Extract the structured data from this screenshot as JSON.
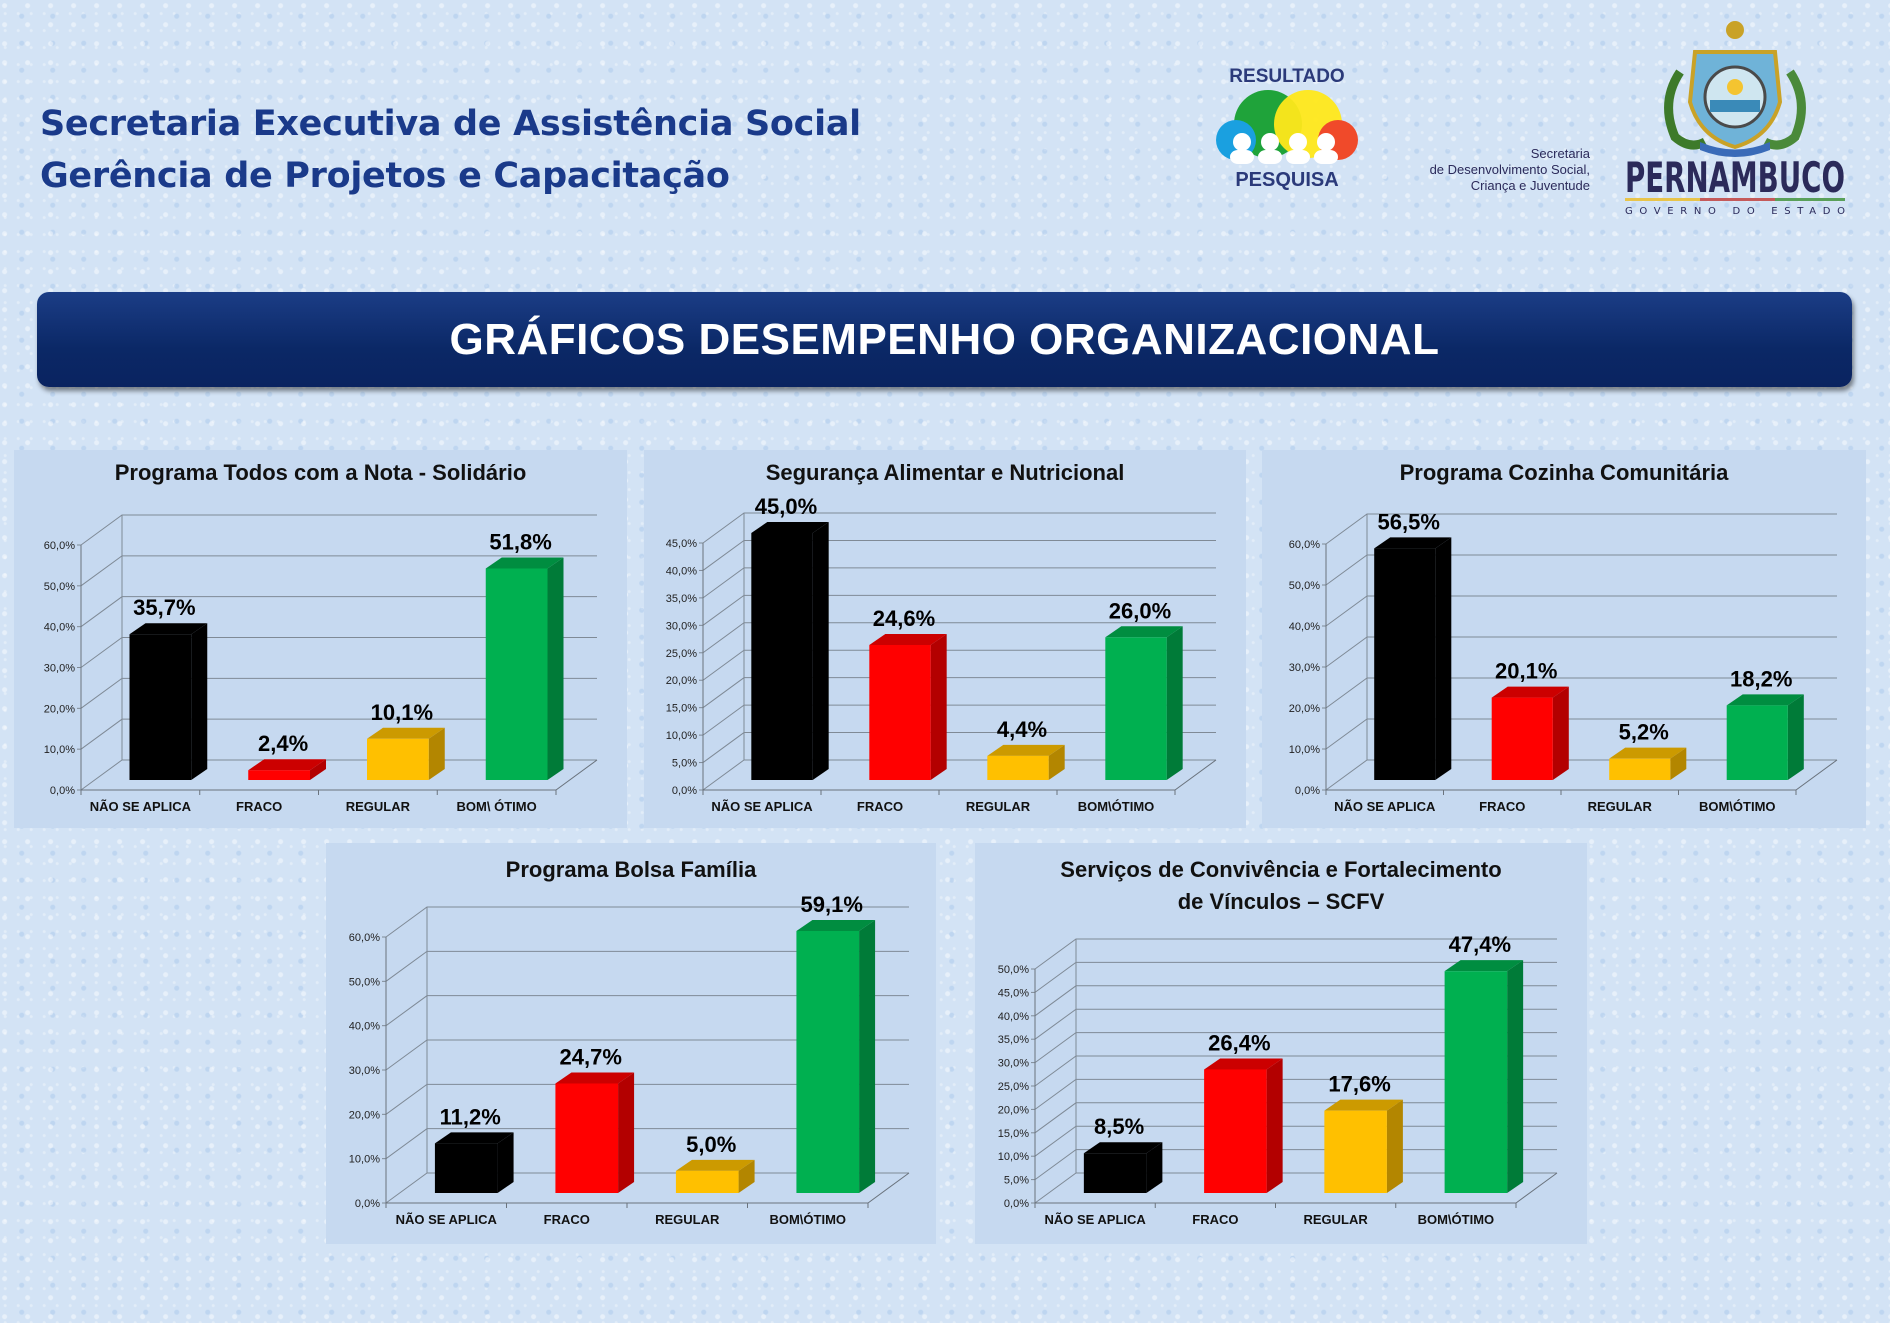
{
  "header": {
    "line1": "Secretaria Executiva de Assistência Social",
    "line2": "Gerência de Projetos e Capacitação"
  },
  "logos": {
    "resultado_top": "RESULTADO",
    "resultado_bottom": "PESQUISA",
    "secretaria": [
      "Secretaria",
      "de Desenvolvimento Social,",
      "Criança e Juventude"
    ],
    "pernambuco": "PERNAMBUCO",
    "governo": "GOVERNO DO ESTADO"
  },
  "banner": {
    "title": "GRÁFICOS DESEMPENHO ORGANIZACIONAL"
  },
  "chart_data": [
    {
      "type": "bar",
      "title": [
        "Programa Todos com a Nota - Solidário"
      ],
      "categories": [
        "NÃO SE APLICA",
        "FRACO",
        "REGULAR",
        "BOM\\ ÓTIMO"
      ],
      "values": [
        35.7,
        2.4,
        10.1,
        51.8
      ],
      "data_labels": [
        "35,7%",
        "2,4%",
        "10,1%",
        "51,8%"
      ],
      "ylim": [
        0,
        60
      ],
      "ytick_labels": [
        "0,0%",
        "10,0%",
        "20,0%",
        "30,0%",
        "40,0%",
        "50,0%",
        "60,0%"
      ],
      "colors": [
        "#000000",
        "#ff0000",
        "#ffc000",
        "#00b050"
      ],
      "style": "3d",
      "grid": true
    },
    {
      "type": "bar",
      "title": [
        "Segurança Alimentar e Nutricional"
      ],
      "categories": [
        "NÃO SE APLICA",
        "FRACO",
        "REGULAR",
        "BOM\\ÓTIMO"
      ],
      "values": [
        45.0,
        24.6,
        4.4,
        26.0
      ],
      "data_labels": [
        "45,0%",
        "24,6%",
        "4,4%",
        "26,0%"
      ],
      "ylim": [
        0,
        45
      ],
      "ytick_labels": [
        "0,0%",
        "5,0%",
        "10,0%",
        "15,0%",
        "20,0%",
        "25,0%",
        "30,0%",
        "35,0%",
        "40,0%",
        "45,0%"
      ],
      "colors": [
        "#000000",
        "#ff0000",
        "#ffc000",
        "#00b050"
      ],
      "style": "3d",
      "grid": true
    },
    {
      "type": "bar",
      "title": [
        "Programa Cozinha Comunitária"
      ],
      "categories": [
        "NÃO SE APLICA",
        "FRACO",
        "REGULAR",
        "BOM\\ÓTIMO"
      ],
      "values": [
        56.5,
        20.1,
        5.2,
        18.2
      ],
      "data_labels": [
        "56,5%",
        "20,1%",
        "5,2%",
        "18,2%"
      ],
      "ylim": [
        0,
        60
      ],
      "ytick_labels": [
        "0,0%",
        "10,0%",
        "20,0%",
        "30,0%",
        "40,0%",
        "50,0%",
        "60,0%"
      ],
      "colors": [
        "#000000",
        "#ff0000",
        "#ffc000",
        "#00b050"
      ],
      "style": "3d",
      "grid": true
    },
    {
      "type": "bar",
      "title": [
        "Programa Bolsa Família"
      ],
      "categories": [
        "NÃO SE APLICA",
        "FRACO",
        "REGULAR",
        "BOM\\ÓTIMO"
      ],
      "values": [
        11.2,
        24.7,
        5.0,
        59.1
      ],
      "data_labels": [
        "11,2%",
        "24,7%",
        "5,0%",
        "59,1%"
      ],
      "ylim": [
        0,
        60
      ],
      "ytick_labels": [
        "0,0%",
        "10,0%",
        "20,0%",
        "30,0%",
        "40,0%",
        "50,0%",
        "60,0%"
      ],
      "colors": [
        "#000000",
        "#ff0000",
        "#ffc000",
        "#00b050"
      ],
      "style": "3d",
      "grid": true
    },
    {
      "type": "bar",
      "title": [
        "Serviços de Convivência e Fortalecimento",
        "de Vínculos – SCFV"
      ],
      "categories": [
        "NÃO SE APLICA",
        "FRACO",
        "REGULAR",
        "BOM\\ÓTIMO"
      ],
      "values": [
        8.5,
        26.4,
        17.6,
        47.4
      ],
      "data_labels": [
        "8,5%",
        "26,4%",
        "17,6%",
        "47,4%"
      ],
      "ylim": [
        0,
        50
      ],
      "ytick_labels": [
        "0,0%",
        "5,0%",
        "10,0%",
        "15,0%",
        "20,0%",
        "25,0%",
        "30,0%",
        "35,0%",
        "40,0%",
        "45,0%",
        "50,0%"
      ],
      "colors": [
        "#000000",
        "#ff0000",
        "#ffc000",
        "#00b050"
      ],
      "style": "3d",
      "grid": true
    }
  ]
}
